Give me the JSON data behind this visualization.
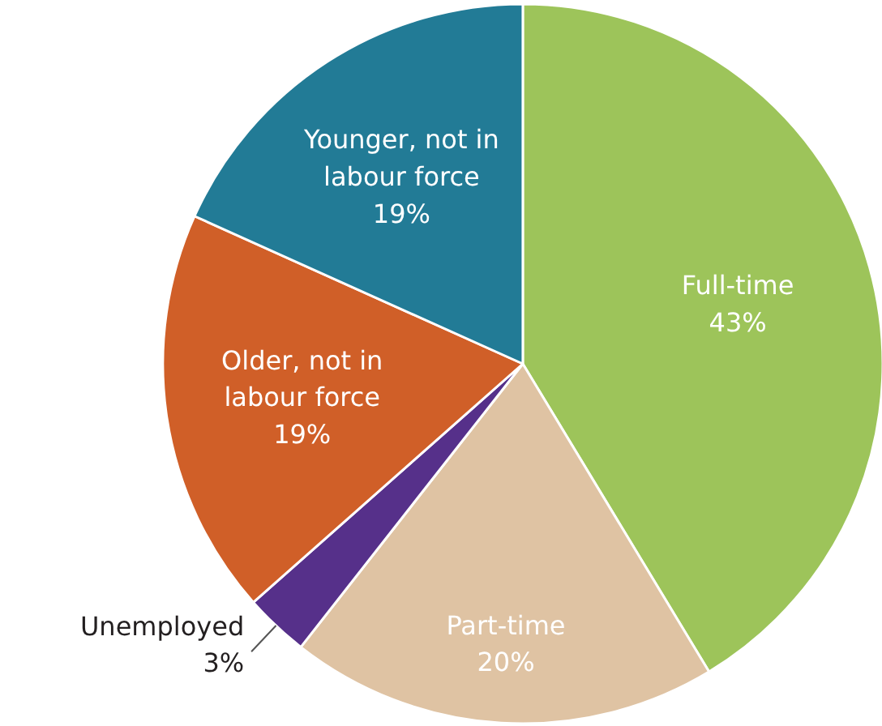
{
  "chart_data": {
    "type": "pie",
    "categories": [
      "Full-time",
      "Part-time",
      "Unemployed",
      "Older, not in labour force",
      "Younger, not in labour force"
    ],
    "values": [
      43,
      20,
      3,
      19,
      19
    ],
    "value_labels": [
      "43%",
      "20%",
      "3%",
      "19%",
      "19%"
    ],
    "colors": [
      "#9dc45a",
      "#dfc3a3",
      "#56308a",
      "#d05f28",
      "#227b96"
    ]
  }
}
